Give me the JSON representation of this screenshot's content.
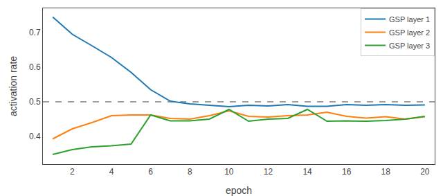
{
  "chart_data": {
    "type": "line",
    "xlabel": "epoch",
    "ylabel": "activation rate",
    "xlim": [
      0.5,
      20.5
    ],
    "ylim": [
      0.32,
      0.77
    ],
    "xticks": [
      2,
      4,
      6,
      8,
      10,
      12,
      14,
      16,
      18,
      20
    ],
    "yticks": [
      0.4,
      0.5,
      0.6,
      0.7
    ],
    "grid": false,
    "legend": "upper right",
    "x": [
      1,
      2,
      3,
      4,
      5,
      6,
      7,
      8,
      9,
      10,
      11,
      12,
      13,
      14,
      15,
      16,
      17,
      18,
      19,
      20
    ],
    "series": [
      {
        "name": "GSP layer 1",
        "color": "#1f77b4",
        "values": [
          0.745,
          0.695,
          0.662,
          0.628,
          0.585,
          0.535,
          0.502,
          0.494,
          0.49,
          0.486,
          0.49,
          0.488,
          0.492,
          0.487,
          0.487,
          0.492,
          0.49,
          0.492,
          0.49,
          0.491
        ]
      },
      {
        "name": "GSP layer 2",
        "color": "#ff7f0e",
        "values": [
          0.393,
          0.422,
          0.44,
          0.46,
          0.462,
          0.462,
          0.452,
          0.45,
          0.46,
          0.474,
          0.458,
          0.456,
          0.46,
          0.462,
          0.47,
          0.458,
          0.453,
          0.457,
          0.45,
          0.457
        ]
      },
      {
        "name": "GSP layer 3",
        "color": "#2ca02c",
        "values": [
          0.348,
          0.362,
          0.37,
          0.373,
          0.378,
          0.462,
          0.445,
          0.445,
          0.45,
          0.478,
          0.444,
          0.45,
          0.452,
          0.478,
          0.444,
          0.445,
          0.444,
          0.446,
          0.45,
          0.458
        ]
      }
    ],
    "reference_line": {
      "y": 0.5,
      "color": "#7f7f7f",
      "line_style": "dashed"
    }
  }
}
